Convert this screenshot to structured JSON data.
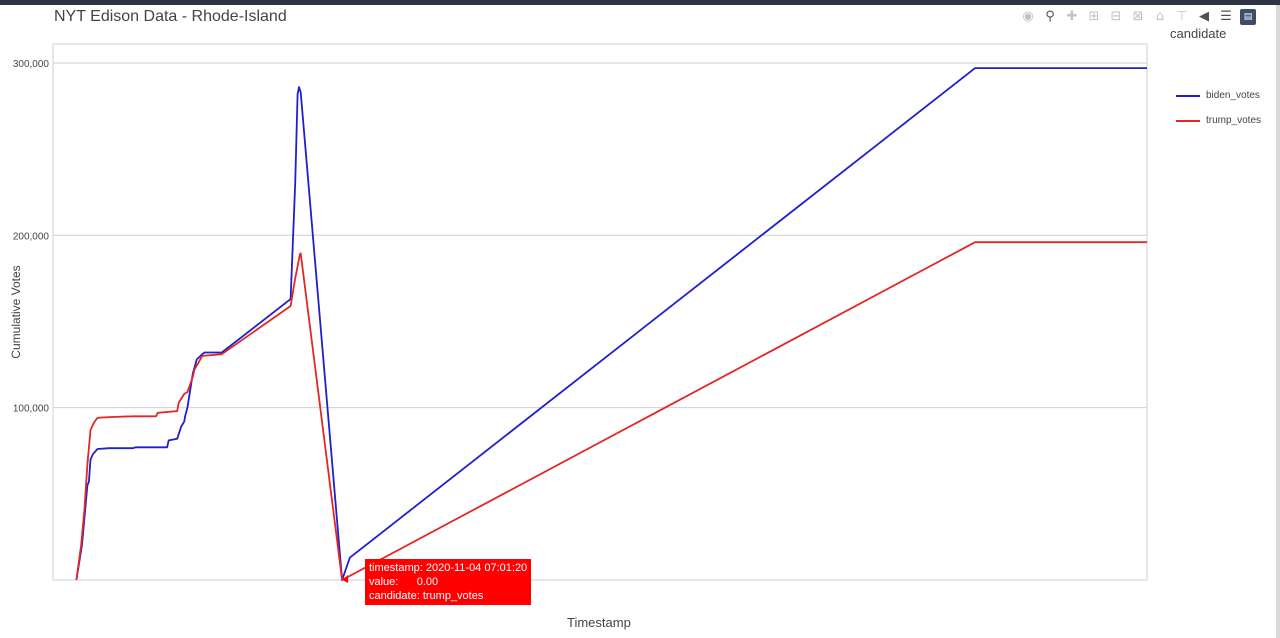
{
  "title": "NYT Edison Data - Rhode-Island",
  "modebar": {
    "icons": [
      "camera-icon",
      "zoom-icon",
      "pan-icon",
      "zoom-in-icon",
      "zoom-out-icon",
      "autoscale-icon",
      "reset-axes-icon",
      "spike-lines-icon",
      "hover-closest-icon",
      "hover-compare-icon",
      "plotly-logo-icon"
    ]
  },
  "chart_data": {
    "type": "line",
    "title": "NYT Edison Data - Rhode-Island",
    "xlabel": "Timestamp",
    "ylabel": "Cumulative Votes",
    "yticks": [
      100000,
      200000,
      300000
    ],
    "ytick_labels": [
      "100,000",
      "200,000",
      "300,000"
    ],
    "ylim": [
      0,
      311000
    ],
    "xlim": [
      -30,
      1370
    ],
    "grid": true,
    "legend_title": "candidate",
    "legend_position": "right",
    "series": [
      {
        "name": "biden_votes",
        "color": "#1f1fcc",
        "x": [
          0,
          7,
          10,
          14,
          16,
          18,
          21,
          27,
          42,
          72,
          76,
          116,
          118,
          129,
          134,
          138,
          139,
          142,
          149,
          154,
          161,
          164,
          186,
          274,
          280,
          283,
          285,
          287,
          340,
          350,
          1150,
          1370
        ],
        "y": [
          0,
          20000,
          35000,
          55000,
          57000,
          70000,
          73000,
          76000,
          76500,
          76500,
          77000,
          77000,
          81000,
          82000,
          89000,
          92000,
          95000,
          100000,
          120000,
          128000,
          131000,
          132000,
          132000,
          163000,
          230000,
          282000,
          286000,
          283000,
          0,
          13000,
          297000,
          297000
        ]
      },
      {
        "name": "trump_votes",
        "color": "#e32626",
        "x": [
          0,
          6,
          10,
          14,
          18,
          22,
          25,
          27,
          30,
          42,
          72,
          102,
          104,
          129,
          131,
          138,
          142,
          149,
          151,
          161,
          186,
          274,
          280,
          286,
          287,
          340,
          1150,
          1370
        ],
        "y": [
          0,
          20000,
          40000,
          67000,
          87000,
          91000,
          93000,
          94000,
          94200,
          94500,
          95000,
          95000,
          97000,
          98000,
          103000,
          108000,
          109000,
          118000,
          122000,
          130000,
          131000,
          159000,
          175000,
          189000,
          189500,
          0,
          196000,
          196000
        ]
      }
    ]
  },
  "tooltip": {
    "line1": "timestamp: 2020-11-04 07:01:20",
    "line2": "value:      0.00",
    "line3": "candidate: trump_votes",
    "color": "#ff0000"
  }
}
